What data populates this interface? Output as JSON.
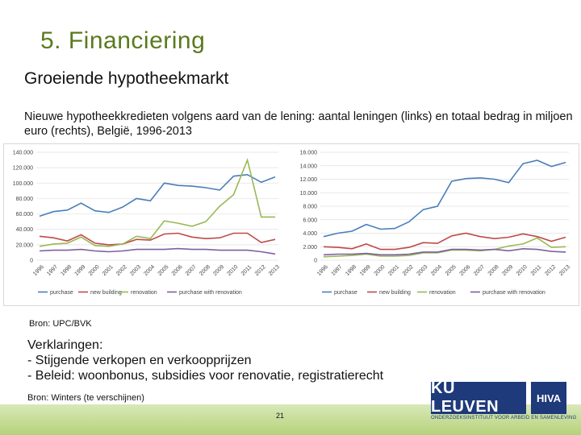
{
  "slide": {
    "title": "5. Financiering",
    "subtitle": "Groeiende hypotheekmarkt",
    "description": "Nieuwe hypotheekkredieten volgens aard van de lening: aantal leningen (links) en totaal bedrag in miljoen euro (rechts), België, 1996-2013",
    "source1": "Bron: UPC/BVK",
    "explanations": [
      "Verklaringen:",
      "-  Stijgende verkopen en verkoopprijzen",
      "-  Beleid: woonbonus, subsidies voor renovatie, registratierecht"
    ],
    "source2": "Bron: Winters (te verschijnen)",
    "page_number": "21",
    "logo_ku": "KU LEUVEN",
    "logo_hiva": "HIVA",
    "logo_tagline": "ONDERZOEKSINSTITUUT VOOR ARBEID EN SAMENLEVING"
  },
  "colors": {
    "purchase": "#4a7ebb",
    "new_building": "#be4b48",
    "renovation": "#98b954",
    "purchase_with_renovation": "#7d60a0",
    "accent": "#5a7a1e"
  },
  "chart_data": [
    {
      "type": "line",
      "title": "",
      "x": [
        "1996",
        "1997",
        "1998",
        "1999",
        "2000",
        "2001",
        "2002",
        "2003",
        "2004",
        "2005",
        "2006",
        "2007",
        "2008",
        "2009",
        "2010",
        "2011",
        "2012",
        "2013"
      ],
      "ylim": [
        0,
        140000
      ],
      "yticks": [
        "0",
        "20.000",
        "40.000",
        "60.000",
        "80.000",
        "100.000",
        "120.000",
        "140.000"
      ],
      "legend": "bottom",
      "series": [
        {
          "name": "purchase",
          "values": [
            57000,
            63000,
            65000,
            74000,
            64000,
            62000,
            69000,
            80000,
            77000,
            100000,
            97000,
            96000,
            94000,
            91000,
            109000,
            111000,
            101000,
            108000
          ]
        },
        {
          "name": "new building",
          "values": [
            31000,
            29000,
            25000,
            33000,
            22000,
            20000,
            21000,
            27000,
            26000,
            34000,
            35000,
            30000,
            28000,
            29000,
            35000,
            35000,
            23000,
            27000
          ]
        },
        {
          "name": "renovation",
          "values": [
            18000,
            21000,
            22000,
            30000,
            19000,
            18000,
            21000,
            31000,
            28000,
            51000,
            48000,
            44000,
            50000,
            70000,
            85000,
            130000,
            56000,
            56000
          ]
        },
        {
          "name": "purchase with renovation",
          "values": [
            12000,
            13000,
            13000,
            14000,
            12000,
            11000,
            12000,
            14000,
            14000,
            14000,
            15000,
            14000,
            14000,
            13000,
            13000,
            13000,
            11000,
            8000
          ]
        }
      ]
    },
    {
      "type": "line",
      "title": "",
      "x": [
        "1996",
        "1997",
        "1998",
        "1999",
        "2000",
        "2001",
        "2002",
        "2003",
        "2004",
        "2005",
        "2006",
        "2007",
        "2008",
        "2009",
        "2010",
        "2011",
        "2012",
        "2013"
      ],
      "ylim": [
        0,
        16000
      ],
      "yticks": [
        "0",
        "2.000",
        "4.000",
        "6.000",
        "8.000",
        "10.000",
        "12.000",
        "14.000",
        "16.000"
      ],
      "legend": "bottom",
      "series": [
        {
          "name": "purchase",
          "values": [
            3500,
            4000,
            4300,
            5300,
            4600,
            4700,
            5700,
            7500,
            8000,
            11700,
            12100,
            12200,
            12000,
            11500,
            14300,
            14800,
            13900,
            14500
          ]
        },
        {
          "name": "new building",
          "values": [
            2000,
            1900,
            1700,
            2400,
            1600,
            1600,
            1900,
            2600,
            2500,
            3600,
            4000,
            3500,
            3200,
            3400,
            3900,
            3500,
            2800,
            3400
          ]
        },
        {
          "name": "renovation",
          "values": [
            500,
            600,
            700,
            900,
            600,
            600,
            700,
            1100,
            1100,
            1500,
            1500,
            1400,
            1600,
            2100,
            2400,
            3300,
            1900,
            2000
          ]
        },
        {
          "name": "purchase with renovation",
          "values": [
            800,
            900,
            900,
            1000,
            800,
            800,
            900,
            1200,
            1200,
            1600,
            1600,
            1500,
            1600,
            1400,
            1700,
            1600,
            1300,
            1200
          ]
        }
      ]
    }
  ]
}
